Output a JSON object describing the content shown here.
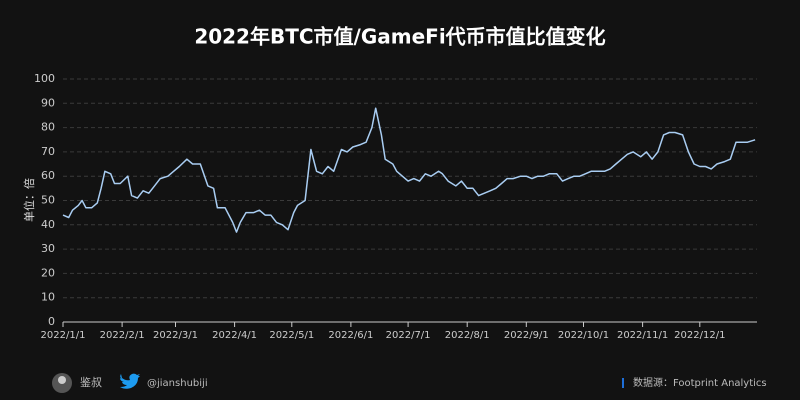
{
  "chart_data": {
    "type": "line",
    "title": "2022年BTC市值/GameFi代币市值比值变化",
    "ylabel": "单位：倍",
    "color": "#a9cdf2",
    "grid": true,
    "x": [
      "2022/1/1",
      "2022/1/4",
      "2022/1/6",
      "2022/1/9",
      "2022/1/11",
      "2022/1/13",
      "2022/1/16",
      "2022/1/19",
      "2022/1/21",
      "2022/1/23",
      "2022/1/26",
      "2022/1/28",
      "2022/1/31",
      "2022/2/4",
      "2022/2/6",
      "2022/2/9",
      "2022/2/12",
      "2022/2/15",
      "2022/2/18",
      "2022/2/21",
      "2022/2/25",
      "2022/2/28",
      "2022/3/3",
      "2022/3/7",
      "2022/3/10",
      "2022/3/14",
      "2022/3/18",
      "2022/3/21",
      "2022/3/23",
      "2022/3/27",
      "2022/3/31",
      "2022/4/2",
      "2022/4/4",
      "2022/4/7",
      "2022/4/11",
      "2022/4/14",
      "2022/4/17",
      "2022/4/20",
      "2022/4/23",
      "2022/4/26",
      "2022/4/29",
      "2022/5/2",
      "2022/5/4",
      "2022/5/8",
      "2022/5/11",
      "2022/5/14",
      "2022/5/17",
      "2022/5/20",
      "2022/5/23",
      "2022/5/27",
      "2022/5/30",
      "2022/6/2",
      "2022/6/6",
      "2022/6/9",
      "2022/6/12",
      "2022/6/14",
      "2022/6/17",
      "2022/6/19",
      "2022/6/23",
      "2022/6/25",
      "2022/6/28",
      "2022/7/1",
      "2022/7/4",
      "2022/7/7",
      "2022/7/10",
      "2022/7/13",
      "2022/7/17",
      "2022/7/19",
      "2022/7/22",
      "2022/7/26",
      "2022/7/29",
      "2022/8/1",
      "2022/8/4",
      "2022/8/7",
      "2022/8/10",
      "2022/8/13",
      "2022/8/16",
      "2022/8/19",
      "2022/8/22",
      "2022/8/25",
      "2022/8/29",
      "2022/9/1",
      "2022/9/4",
      "2022/9/7",
      "2022/9/10",
      "2022/9/13",
      "2022/9/17",
      "2022/9/20",
      "2022/9/23",
      "2022/9/26",
      "2022/9/29",
      "2022/10/2",
      "2022/10/5",
      "2022/10/9",
      "2022/10/12",
      "2022/10/15",
      "2022/10/18",
      "2022/10/21",
      "2022/10/24",
      "2022/10/27",
      "2022/10/31",
      "2022/11/3",
      "2022/11/6",
      "2022/11/9",
      "2022/11/12",
      "2022/11/15",
      "2022/11/18",
      "2022/11/22",
      "2022/11/25",
      "2022/11/28",
      "2022/12/1",
      "2022/12/4",
      "2022/12/7",
      "2022/12/10",
      "2022/12/14",
      "2022/12/17",
      "2022/12/20",
      "2022/12/23",
      "2022/12/26",
      "2022/12/30"
    ],
    "values": [
      44,
      43,
      46,
      48,
      50,
      47,
      47,
      49,
      55,
      62,
      61,
      57,
      57,
      60,
      52,
      51,
      54,
      53,
      56,
      59,
      60,
      62,
      64,
      67,
      65,
      65,
      56,
      55,
      47,
      47,
      41,
      37,
      41,
      45,
      45,
      46,
      44,
      44,
      41,
      40,
      38,
      45,
      48,
      50,
      71,
      62,
      61,
      64,
      62,
      71,
      70,
      72,
      73,
      74,
      80,
      88,
      77,
      67,
      65,
      62,
      60,
      58,
      59,
      58,
      61,
      60,
      62,
      61,
      58,
      56,
      58,
      55,
      55,
      52,
      53,
      54,
      55,
      57,
      59,
      59,
      60,
      60,
      59,
      60,
      60,
      61,
      61,
      58,
      59,
      60,
      60,
      61,
      62,
      62,
      62,
      63,
      65,
      67,
      69,
      70,
      68,
      70,
      67,
      70,
      77,
      78,
      78,
      77,
      70,
      65,
      64,
      64,
      63,
      65,
      66,
      67,
      74,
      74,
      74,
      75
    ],
    "xlim": [
      "2022/1/1",
      "2022/12/31"
    ],
    "xticks": [
      "2022/1/1",
      "2022/2/1",
      "2022/3/1",
      "2022/4/1",
      "2022/5/1",
      "2022/6/1",
      "2022/7/1",
      "2022/8/1",
      "2022/9/1",
      "2022/10/1",
      "2022/11/1",
      "2022/12/1"
    ],
    "ylim": [
      0,
      100
    ],
    "yticks": [
      0,
      10,
      20,
      30,
      40,
      50,
      60,
      70,
      80,
      90,
      100
    ]
  },
  "footer": {
    "author": "鉴叔",
    "handle": "@jianshubiji",
    "source": "数据源：Footprint Analytics"
  }
}
